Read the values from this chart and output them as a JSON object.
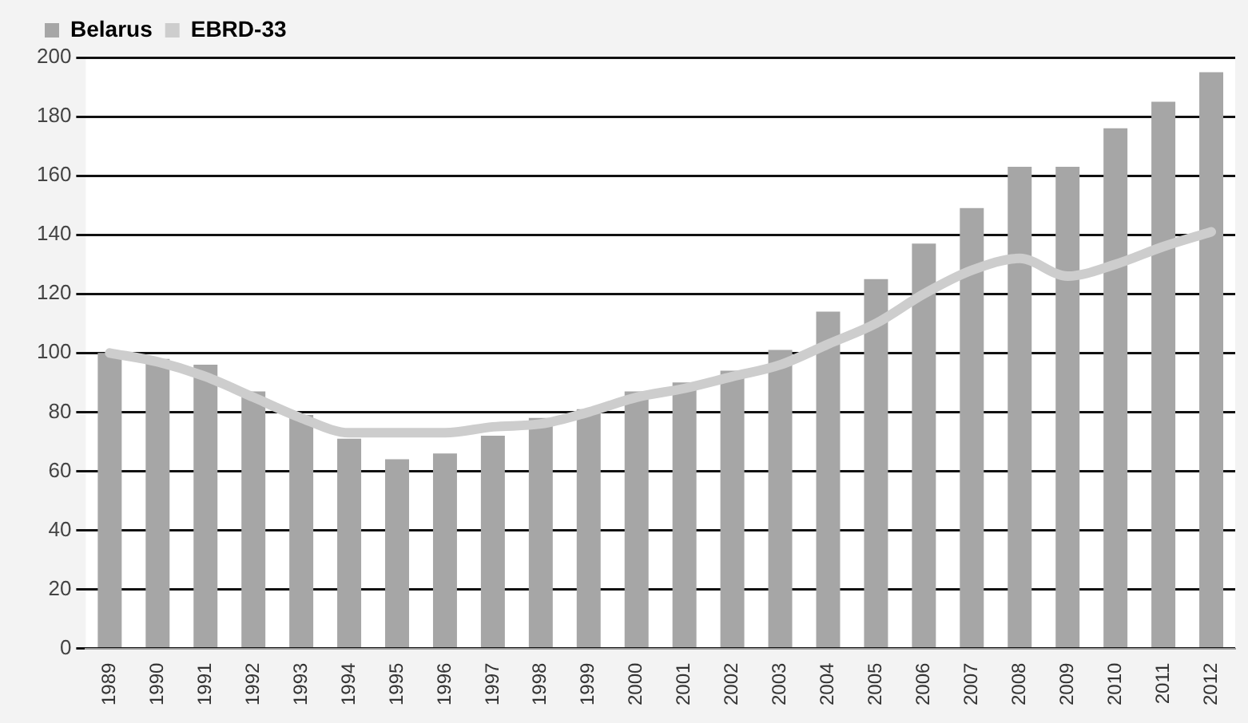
{
  "chart_data": {
    "type": "bar",
    "categories": [
      "1989",
      "1990",
      "1991",
      "1992",
      "1993",
      "1994",
      "1995",
      "1996",
      "1997",
      "1998",
      "1999",
      "2000",
      "2001",
      "2002",
      "2003",
      "2004",
      "2005",
      "2006",
      "2007",
      "2008",
      "2009",
      "2010",
      "2011",
      "2012"
    ],
    "series": [
      {
        "name": "Belarus",
        "color": "#a6a6a6",
        "values": [
          100,
          98,
          96,
          87,
          79,
          71,
          64,
          66,
          72,
          78,
          81,
          87,
          90,
          94,
          101,
          114,
          125,
          137,
          149,
          163,
          163,
          176,
          185,
          195
        ]
      },
      {
        "name": "EBRD-33",
        "type": "line",
        "color": "#cdcdcd",
        "values": [
          100,
          97,
          92,
          85,
          78,
          73,
          73,
          73,
          75,
          76,
          80,
          85,
          88,
          92,
          96,
          103,
          110,
          120,
          128,
          132,
          126,
          130,
          136,
          141
        ]
      }
    ],
    "ylim": [
      0,
      200
    ],
    "yticks": [
      0,
      20,
      40,
      60,
      80,
      100,
      120,
      140,
      160,
      180,
      200
    ],
    "grid": "y",
    "legend": "top left",
    "marker": "none"
  }
}
